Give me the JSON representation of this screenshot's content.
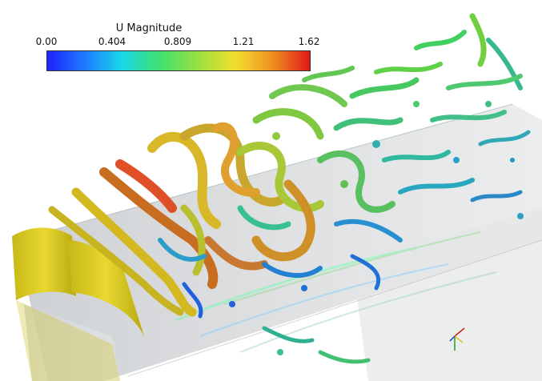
{
  "legend": {
    "title": "U Magnitude",
    "ticks": [
      "0.00",
      "0.404",
      "0.809",
      "1.21",
      "1.62"
    ],
    "gradient": [
      "#2020ff",
      "#1e7bff",
      "#19d8e6",
      "#40e070",
      "#98e040",
      "#f0e030",
      "#f09020",
      "#e01818"
    ]
  },
  "scene": {
    "background": "#ffffff",
    "content": "turbulent vortex isosurfaces over channel floor, colored by velocity magnitude",
    "wall_color": "#d8c82a"
  }
}
